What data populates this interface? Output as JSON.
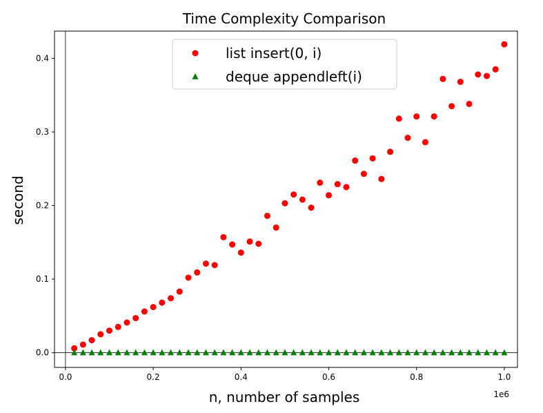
{
  "chart_data": {
    "type": "scatter",
    "title": "Time Complexity Comparison",
    "xlabel": "n, number of samples",
    "ylabel": "second",
    "x_offset_label": "1e6",
    "xlim": [
      -25000,
      1030000
    ],
    "ylim": [
      -0.02,
      0.437
    ],
    "x_ticks": [
      0,
      200000,
      400000,
      600000,
      800000,
      1000000
    ],
    "x_tick_labels": [
      "0.0",
      "0.2",
      "0.4",
      "0.6",
      "0.8",
      "1.0"
    ],
    "y_ticks": [
      0.0,
      0.1,
      0.2,
      0.3,
      0.4
    ],
    "y_tick_labels": [
      "0.0",
      "0.1",
      "0.2",
      "0.3",
      "0.4"
    ],
    "reference_lines": {
      "horizontal": 0,
      "vertical": 0
    },
    "grid": false,
    "legend_position": "upper-center",
    "series": [
      {
        "name": "list insert(0, i)",
        "marker": "circle",
        "color": "#ff0000",
        "points": [
          [
            20000,
            0.006
          ],
          [
            40000,
            0.011
          ],
          [
            60000,
            0.017
          ],
          [
            80000,
            0.025
          ],
          [
            100000,
            0.03
          ],
          [
            120000,
            0.035
          ],
          [
            140000,
            0.041
          ],
          [
            160000,
            0.047
          ],
          [
            180000,
            0.056
          ],
          [
            200000,
            0.062
          ],
          [
            220000,
            0.068
          ],
          [
            240000,
            0.074
          ],
          [
            260000,
            0.083
          ],
          [
            280000,
            0.102
          ],
          [
            300000,
            0.109
          ],
          [
            320000,
            0.121
          ],
          [
            340000,
            0.119
          ],
          [
            360000,
            0.157
          ],
          [
            380000,
            0.147
          ],
          [
            400000,
            0.136
          ],
          [
            420000,
            0.151
          ],
          [
            440000,
            0.148
          ],
          [
            460000,
            0.186
          ],
          [
            480000,
            0.17
          ],
          [
            500000,
            0.203
          ],
          [
            520000,
            0.215
          ],
          [
            540000,
            0.208
          ],
          [
            560000,
            0.197
          ],
          [
            580000,
            0.231
          ],
          [
            600000,
            0.214
          ],
          [
            620000,
            0.229
          ],
          [
            640000,
            0.225
          ],
          [
            660000,
            0.261
          ],
          [
            680000,
            0.243
          ],
          [
            700000,
            0.264
          ],
          [
            720000,
            0.236
          ],
          [
            740000,
            0.273
          ],
          [
            760000,
            0.318
          ],
          [
            780000,
            0.292
          ],
          [
            800000,
            0.321
          ],
          [
            820000,
            0.286
          ],
          [
            840000,
            0.321
          ],
          [
            860000,
            0.372
          ],
          [
            880000,
            0.335
          ],
          [
            900000,
            0.368
          ],
          [
            920000,
            0.338
          ],
          [
            940000,
            0.378
          ],
          [
            960000,
            0.376
          ],
          [
            980000,
            0.385
          ],
          [
            1000000,
            0.419
          ]
        ]
      },
      {
        "name": "deque appendleft(i)",
        "marker": "triangle",
        "color": "#008000",
        "points": [
          [
            20000,
            0.0
          ],
          [
            40000,
            0.0
          ],
          [
            60000,
            0.0
          ],
          [
            80000,
            0.0
          ],
          [
            100000,
            0.0
          ],
          [
            120000,
            0.0
          ],
          [
            140000,
            0.0
          ],
          [
            160000,
            0.0
          ],
          [
            180000,
            0.0
          ],
          [
            200000,
            0.0
          ],
          [
            220000,
            0.0
          ],
          [
            240000,
            0.0
          ],
          [
            260000,
            0.0
          ],
          [
            280000,
            0.0
          ],
          [
            300000,
            0.0
          ],
          [
            320000,
            0.0
          ],
          [
            340000,
            0.0
          ],
          [
            360000,
            0.0
          ],
          [
            380000,
            0.0
          ],
          [
            400000,
            0.0
          ],
          [
            420000,
            0.0
          ],
          [
            440000,
            0.0
          ],
          [
            460000,
            0.0
          ],
          [
            480000,
            0.0
          ],
          [
            500000,
            0.0
          ],
          [
            520000,
            0.0
          ],
          [
            540000,
            0.0
          ],
          [
            560000,
            0.0
          ],
          [
            580000,
            0.0
          ],
          [
            600000,
            0.0
          ],
          [
            620000,
            0.0
          ],
          [
            640000,
            0.0
          ],
          [
            660000,
            0.0
          ],
          [
            680000,
            0.0
          ],
          [
            700000,
            0.0
          ],
          [
            720000,
            0.0
          ],
          [
            740000,
            0.0
          ],
          [
            760000,
            0.0
          ],
          [
            780000,
            0.0
          ],
          [
            800000,
            0.0
          ],
          [
            820000,
            0.0
          ],
          [
            840000,
            0.0
          ],
          [
            860000,
            0.0
          ],
          [
            880000,
            0.0
          ],
          [
            900000,
            0.0
          ],
          [
            920000,
            0.0
          ],
          [
            940000,
            0.0
          ],
          [
            960000,
            0.0
          ],
          [
            980000,
            0.0
          ],
          [
            1000000,
            0.0
          ]
        ]
      }
    ]
  }
}
